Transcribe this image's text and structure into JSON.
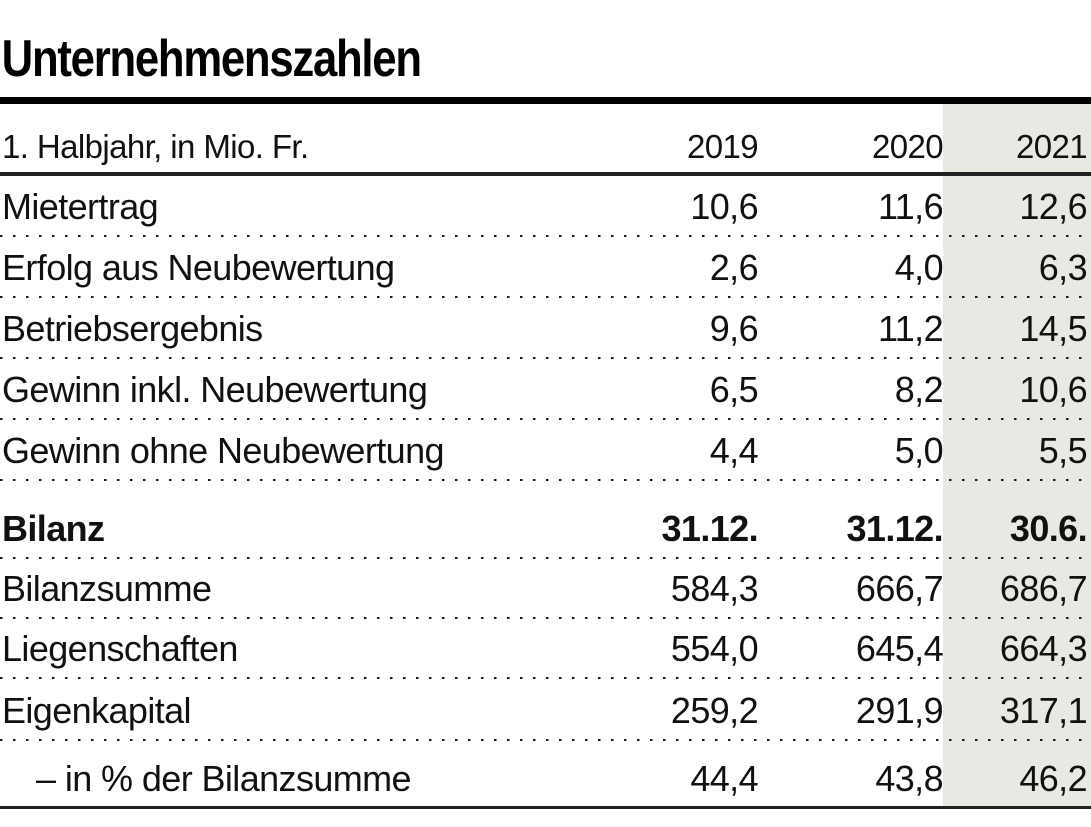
{
  "title": "Unternehmenszahlen",
  "table": {
    "header": {
      "label": "1. Halbjahr, in Mio. Fr.",
      "cols": [
        "2019",
        "2020",
        "2021"
      ]
    },
    "rows": [
      {
        "label": "Mietertrag",
        "values": [
          "10,6",
          "11,6",
          "12,6"
        ]
      },
      {
        "label": "Erfolg aus Neubewertung",
        "values": [
          "2,6",
          "4,0",
          "6,3"
        ]
      },
      {
        "label": "Betriebsergebnis",
        "values": [
          "9,6",
          "11,2",
          "14,5"
        ]
      },
      {
        "label": "Gewinn inkl. Neubewertung",
        "values": [
          "6,5",
          "8,2",
          "10,6"
        ]
      },
      {
        "label": "Gewinn ohne Neubewertung",
        "values": [
          "4,4",
          "5,0",
          "5,5"
        ]
      },
      {
        "label": "Bilanz",
        "values": [
          "31.12.",
          "31.12.",
          "30.6."
        ]
      },
      {
        "label": "Bilanzsumme",
        "values": [
          "584,3",
          "666,7",
          "686,7"
        ]
      },
      {
        "label": "Liegenschaften",
        "values": [
          "554,0",
          "645,4",
          "664,3"
        ]
      },
      {
        "label": "Eigenkapital",
        "values": [
          "259,2",
          "291,9",
          "317,1"
        ]
      },
      {
        "label": "– in % der Bilanzsumme",
        "values": [
          "44,4",
          "43,8",
          "46,2"
        ]
      }
    ]
  },
  "colors": {
    "highlight_column": "#eae8e2",
    "rule": "#000000",
    "text": "#111111"
  },
  "chart_data": {
    "type": "table",
    "title": "Unternehmenszahlen",
    "subtitle": "1. Halbjahr, in Mio. Fr.",
    "columns": [
      "2019",
      "2020",
      "2021"
    ],
    "highlighted_column": "2021",
    "rows": [
      {
        "label": "Mietertrag",
        "values": [
          10.6,
          11.6,
          12.6
        ]
      },
      {
        "label": "Erfolg aus Neubewertung",
        "values": [
          2.6,
          4.0,
          6.3
        ]
      },
      {
        "label": "Betriebsergebnis",
        "values": [
          9.6,
          11.2,
          14.5
        ]
      },
      {
        "label": "Gewinn inkl. Neubewertung",
        "values": [
          6.5,
          8.2,
          10.6
        ]
      },
      {
        "label": "Gewinn ohne Neubewertung",
        "values": [
          4.4,
          5.0,
          5.5
        ]
      }
    ],
    "balance_section": {
      "label": "Bilanz",
      "dates": [
        "31.12.",
        "31.12.",
        "30.6."
      ],
      "rows": [
        {
          "label": "Bilanzsumme",
          "values": [
            584.3,
            666.7,
            686.7
          ]
        },
        {
          "label": "Liegenschaften",
          "values": [
            554.0,
            645.4,
            664.3
          ]
        },
        {
          "label": "Eigenkapital",
          "values": [
            259.2,
            291.9,
            317.1
          ]
        },
        {
          "label": "– in % der Bilanzsumme",
          "values": [
            44.4,
            43.8,
            46.2
          ]
        }
      ]
    }
  }
}
